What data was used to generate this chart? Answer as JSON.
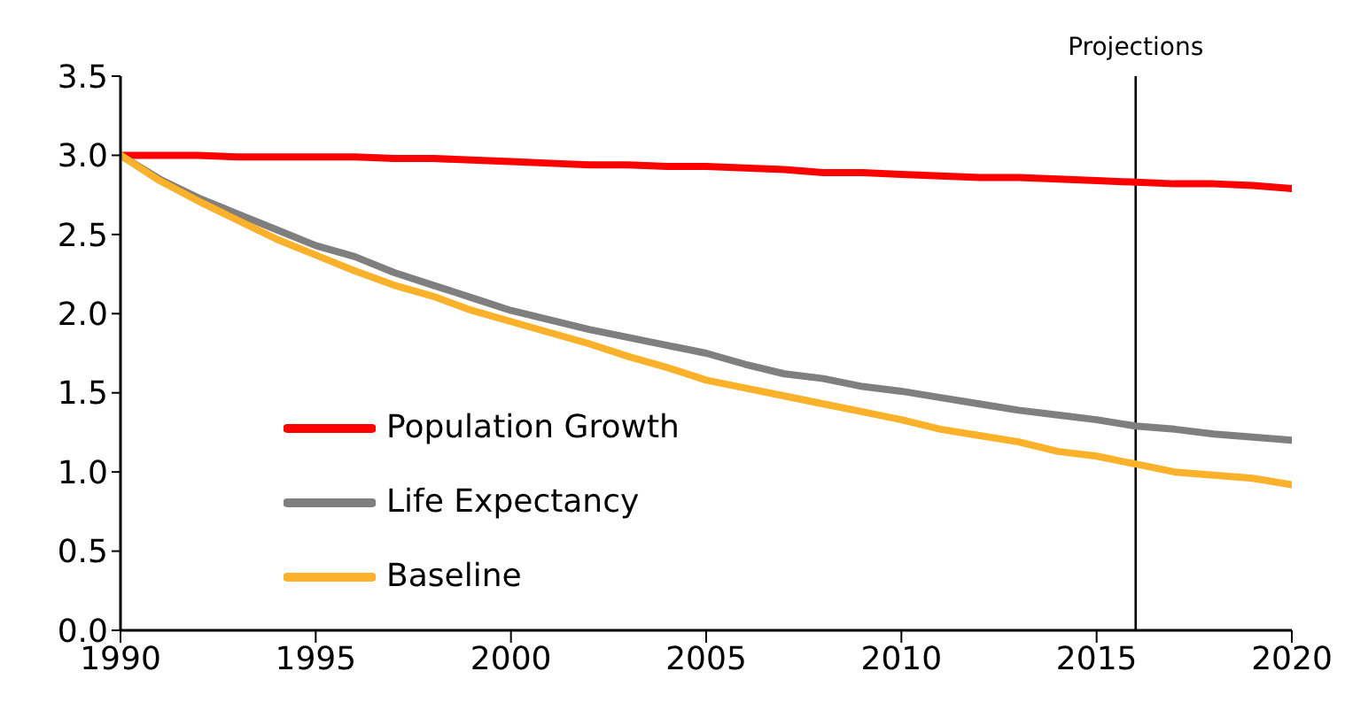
{
  "chart_data": {
    "type": "line",
    "x": [
      1990,
      1991,
      1992,
      1993,
      1994,
      1995,
      1996,
      1997,
      1998,
      1999,
      2000,
      2001,
      2002,
      2003,
      2004,
      2005,
      2006,
      2007,
      2008,
      2009,
      2010,
      2011,
      2012,
      2013,
      2014,
      2015,
      2016,
      2017,
      2018,
      2019,
      2020
    ],
    "series": [
      {
        "name": "Population Growth",
        "color": "#ff0000",
        "values": [
          3.0,
          3.0,
          3.0,
          2.99,
          2.99,
          2.99,
          2.99,
          2.98,
          2.98,
          2.97,
          2.96,
          2.95,
          2.94,
          2.94,
          2.93,
          2.93,
          2.92,
          2.91,
          2.89,
          2.89,
          2.88,
          2.87,
          2.86,
          2.86,
          2.85,
          2.84,
          2.83,
          2.82,
          2.82,
          2.81,
          2.79
        ]
      },
      {
        "name": "Life Expectancy",
        "color": "#7f7f7f",
        "values": [
          3.0,
          2.85,
          2.73,
          2.63,
          2.53,
          2.43,
          2.36,
          2.26,
          2.18,
          2.1,
          2.02,
          1.96,
          1.9,
          1.85,
          1.8,
          1.75,
          1.68,
          1.62,
          1.59,
          1.54,
          1.51,
          1.47,
          1.43,
          1.39,
          1.36,
          1.33,
          1.29,
          1.27,
          1.24,
          1.22,
          1.2
        ]
      },
      {
        "name": "Baseline",
        "color": "#fbb12a",
        "values": [
          3.0,
          2.84,
          2.71,
          2.59,
          2.47,
          2.37,
          2.27,
          2.18,
          2.11,
          2.02,
          1.95,
          1.88,
          1.81,
          1.73,
          1.66,
          1.58,
          1.53,
          1.48,
          1.43,
          1.38,
          1.33,
          1.27,
          1.23,
          1.19,
          1.13,
          1.1,
          1.05,
          1.0,
          0.98,
          0.96,
          0.92
        ]
      }
    ],
    "xlim": [
      1990,
      2020
    ],
    "xticks": [
      1990,
      1995,
      2000,
      2005,
      2010,
      2015,
      2020
    ],
    "ylim": [
      0,
      3.5
    ],
    "yticks": [
      {
        "value": 0,
        "label": "0.0"
      },
      0.5,
      {
        "value": 1,
        "label": "1.0"
      },
      1.5,
      {
        "value": 2,
        "label": "2.0"
      },
      2.5,
      {
        "value": 3,
        "label": "3.0"
      },
      3.5
    ],
    "ref_lines": [
      {
        "axis": "x",
        "value": 2016,
        "label": "Projections",
        "color": "#000000"
      }
    ],
    "grid": false,
    "legend": "bottom left",
    "marker": "none",
    "line_style": "solid"
  }
}
